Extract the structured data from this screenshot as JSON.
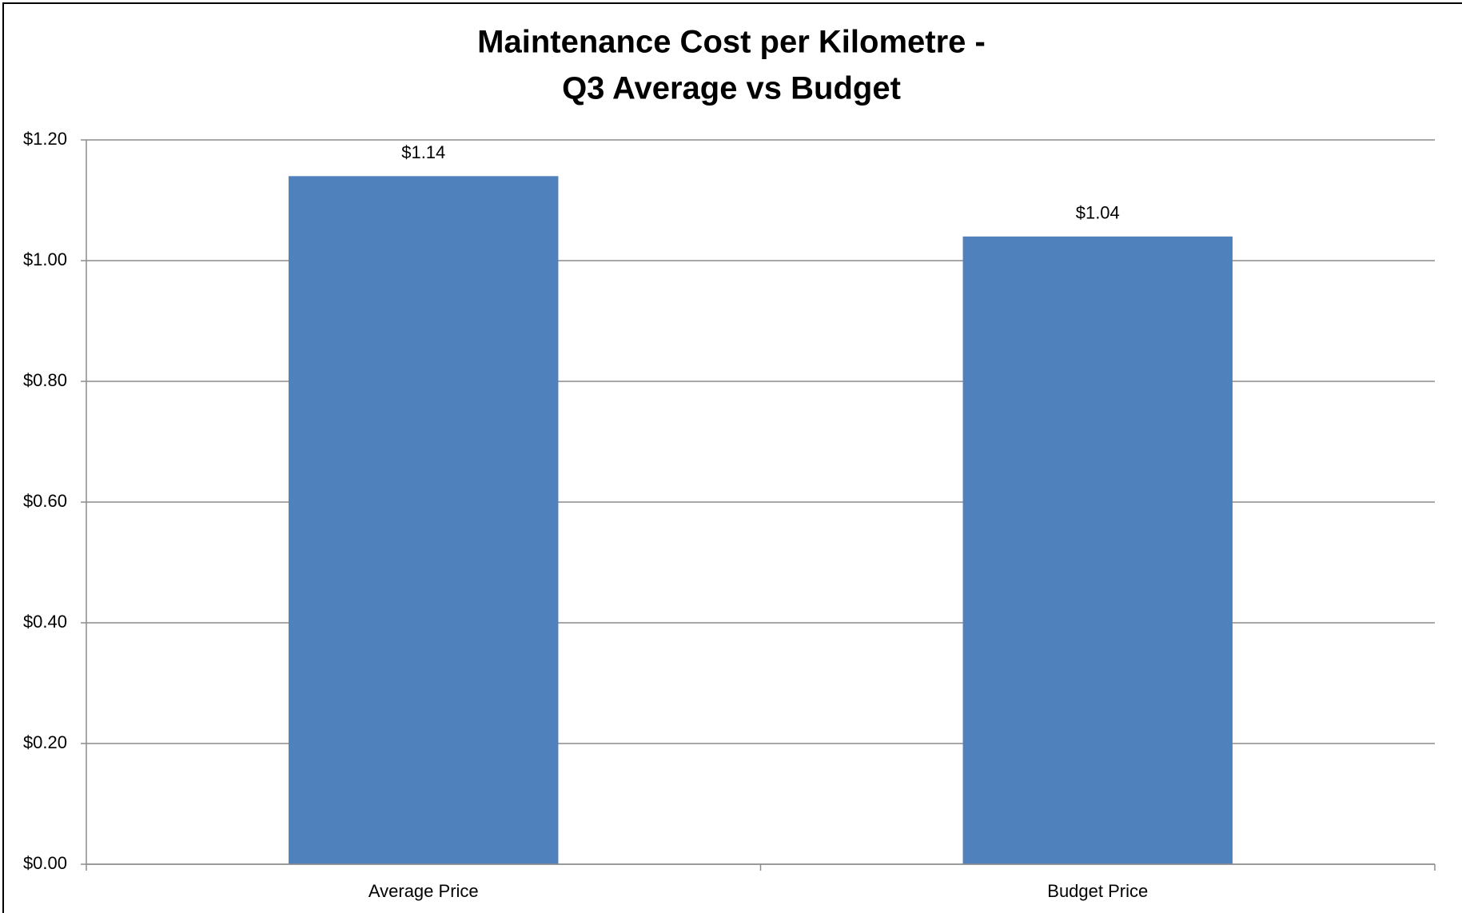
{
  "chart_data": {
    "type": "bar",
    "title": [
      "Maintenance Cost per Kilometre -",
      "Q3 Average vs Budget"
    ],
    "categories": [
      "Average Price",
      "Budget Price"
    ],
    "values": [
      1.14,
      1.04
    ],
    "value_labels": [
      "$1.14",
      "$1.04"
    ],
    "color": "#4f81bd",
    "ylim": [
      0,
      1.2
    ],
    "yticks": [
      {
        "value": 0,
        "label": "$0.00"
      },
      {
        "value": 0.2,
        "label": "$0.20"
      },
      {
        "value": 0.4,
        "label": "$0.40"
      },
      {
        "value": 0.6,
        "label": "$0.60"
      },
      {
        "value": 0.8,
        "label": "$0.80"
      },
      {
        "value": 1.0,
        "label": "$1.00"
      },
      {
        "value": 1.2,
        "label": "$1.20"
      }
    ],
    "grid": true
  }
}
